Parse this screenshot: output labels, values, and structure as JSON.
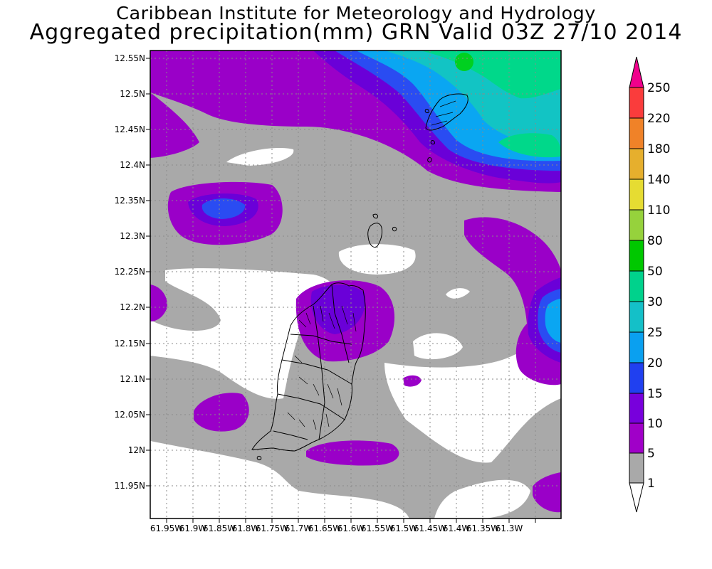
{
  "title": {
    "line1": "Caribbean Institute for Meteorology and Hydrology",
    "line2": "Aggregated precipitation(mm) GRN Valid 03Z 27/10 2014"
  },
  "map": {
    "lat_ticks": [
      "12.55N",
      "12.5N",
      "12.45N",
      "12.4N",
      "12.35N",
      "12.3N",
      "12.25N",
      "12.2N",
      "12.15N",
      "12.1N",
      "12.05N",
      "12N",
      "11.95N"
    ],
    "lon_ticks": [
      "61.95W",
      "61.9W",
      "61.85W",
      "61.8W",
      "61.75W",
      "61.7W",
      "61.65W",
      "61.6W",
      "61.55W",
      "61.5W",
      "61.45W",
      "61.4W",
      "61.35W",
      "61.3W"
    ],
    "colors": {
      "c1": "#a9a9a9",
      "c5": "#9a00c8",
      "c10": "#6a00d8",
      "c15": "#2a4cf2",
      "c20": "#0aa6f2",
      "c25": "#12c4c4",
      "c30": "#00d88a",
      "c50": "#00d020",
      "land": "#000000"
    }
  },
  "colorbar": {
    "levels": [
      "1",
      "5",
      "10",
      "15",
      "20",
      "25",
      "30",
      "50",
      "80",
      "110",
      "140",
      "180",
      "220",
      "250"
    ],
    "colors": [
      "#a9a9a9",
      "#a000c8",
      "#7800dc",
      "#2040f0",
      "#0aa0f0",
      "#14c0c8",
      "#00d28c",
      "#00c800",
      "#96d23c",
      "#e6dc32",
      "#e6af2d",
      "#f08228",
      "#fa3c3c",
      "#f0008c"
    ]
  }
}
